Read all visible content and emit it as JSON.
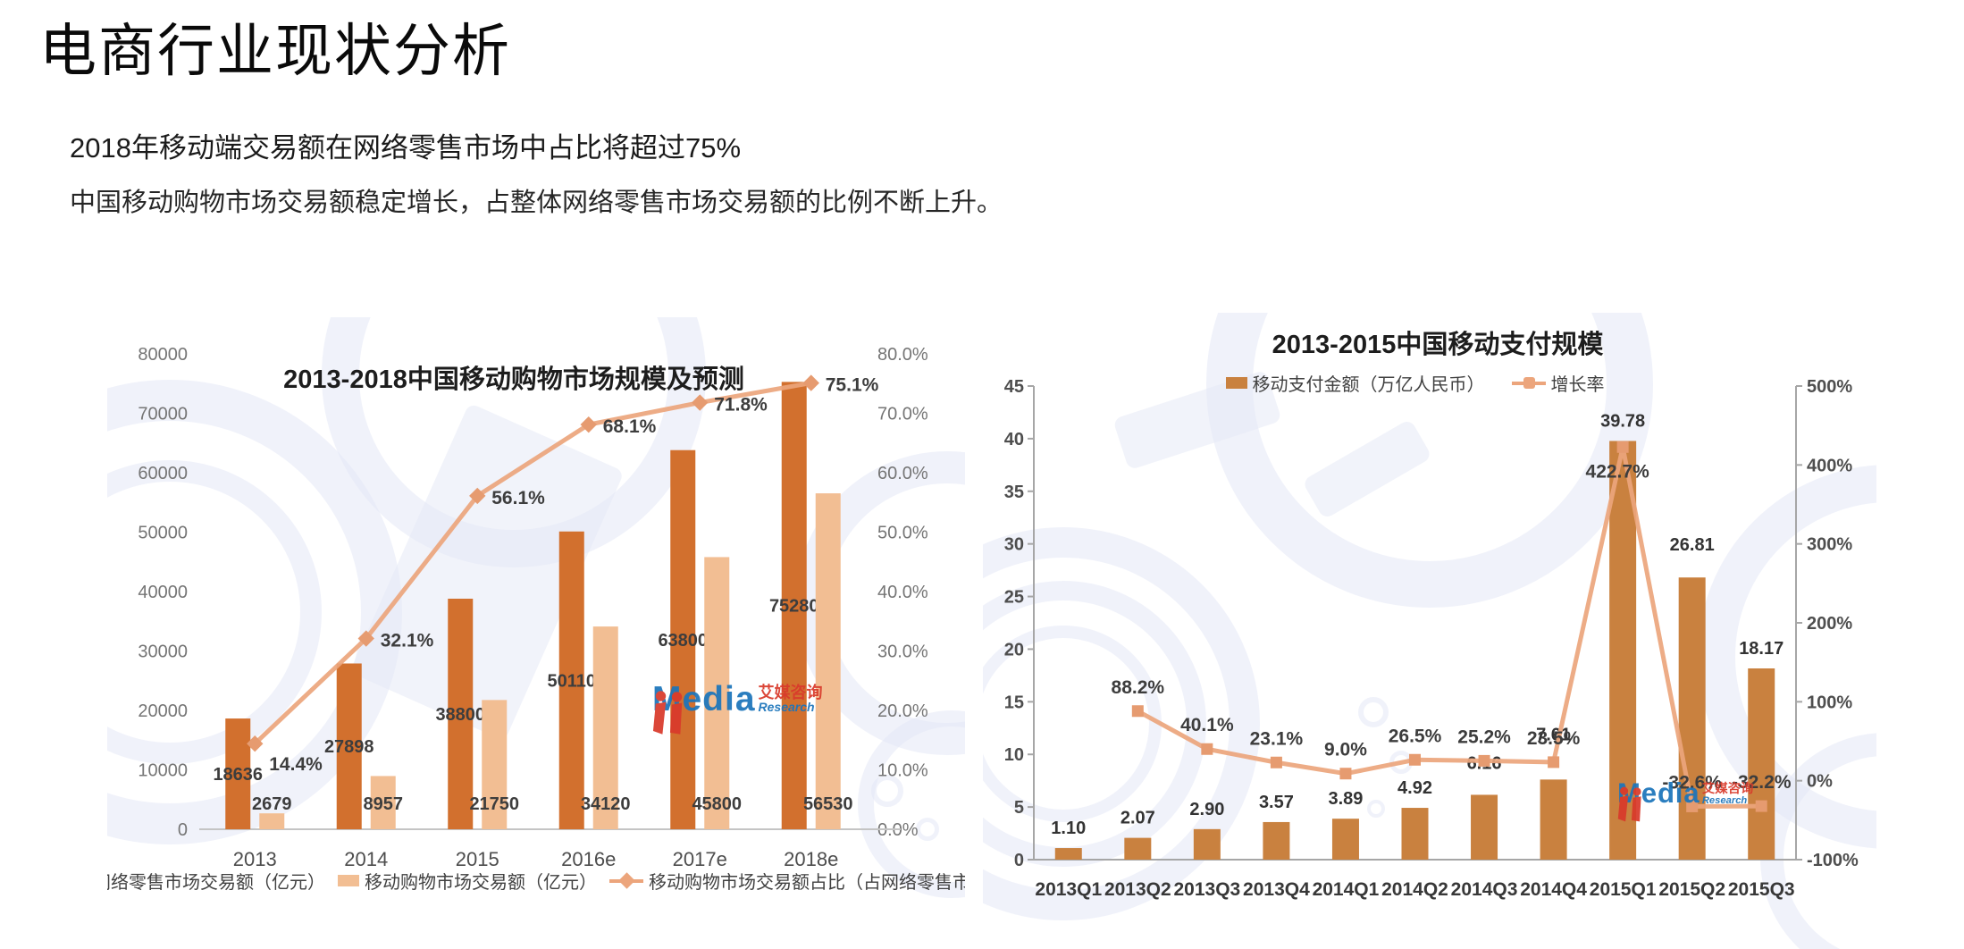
{
  "page": {
    "title": "电商行业现状分析",
    "subtitle": "2018年移动端交易额在网络零售市场中占比将超过75%",
    "description": "中国移动购物市场交易额稳定增长，占整体网络零售市场交易额的比例不断上升。"
  },
  "brand": {
    "media": "Media",
    "cn": "艾媒咨询",
    "research": "Research"
  },
  "colors": {
    "bar_dark": "#D2702E",
    "bar_light": "#F2BE93",
    "bar_right": "#C9813F",
    "line_salmon": "#ECA57C",
    "marker_salmon": "#E69B70",
    "logo_red": "#D93A2B",
    "logo_blue": "#1B75BB",
    "watermark_blue": "#E4E8F6"
  },
  "chart_data": [
    {
      "type": "bar+line",
      "title": "2013-2018中国移动购物市场规模及预测",
      "categories": [
        "2013",
        "2014",
        "2015",
        "2016e",
        "2017e",
        "2018e"
      ],
      "series": [
        {
          "name": "网络零售市场交易额（亿元）",
          "type": "bar",
          "axis": "left",
          "color": "#D2702E",
          "values": [
            18636,
            27898,
            38800,
            50110,
            63800,
            75280
          ],
          "labels": [
            "18636",
            "27898",
            "38800",
            "50110",
            "63800",
            "75280"
          ]
        },
        {
          "name": "移动购物市场交易额（亿元）",
          "type": "bar",
          "axis": "left",
          "color": "#F2BE93",
          "values": [
            2679,
            8957,
            21750,
            34120,
            45800,
            56530
          ],
          "labels": [
            "2679",
            "8957",
            "21750",
            "34120",
            "45800",
            "56530"
          ]
        },
        {
          "name": "移动购物市场交易额占比（占网络零售市场）",
          "type": "line",
          "axis": "right",
          "color": "#ECA57C",
          "values": [
            14.4,
            32.1,
            56.1,
            68.1,
            71.8,
            75.1
          ],
          "labels": [
            "14.4%",
            "32.1%",
            "56.1%",
            "68.1%",
            "71.8%",
            "75.1%"
          ]
        }
      ],
      "left_axis": {
        "min": 0,
        "max": 80000,
        "step": 10000,
        "labels": [
          "0",
          "10000",
          "20000",
          "30000",
          "40000",
          "50000",
          "60000",
          "70000",
          "80000"
        ]
      },
      "right_axis": {
        "min": 0,
        "max": 80,
        "step": 10,
        "labels": [
          "0.0%",
          "10.0%",
          "20.0%",
          "30.0%",
          "40.0%",
          "50.0%",
          "60.0%",
          "70.0%",
          "80.0%"
        ]
      },
      "legend_position": "bottom",
      "grid": false
    },
    {
      "type": "bar+line",
      "title": "2013-2015中国移动支付规模",
      "categories": [
        "2013Q1",
        "2013Q2",
        "2013Q3",
        "2013Q4",
        "2014Q1",
        "2014Q2",
        "2014Q3",
        "2014Q4",
        "2015Q1",
        "2015Q2",
        "2015Q3"
      ],
      "series": [
        {
          "name": "移动支付金额（万亿人民币）",
          "type": "bar",
          "axis": "left",
          "color": "#C9813F",
          "values": [
            1.1,
            2.07,
            2.9,
            3.57,
            3.89,
            4.92,
            6.16,
            7.61,
            39.78,
            26.81,
            18.17
          ],
          "labels": [
            "1.10",
            "2.07",
            "2.90",
            "3.57",
            "3.89",
            "4.92",
            "6.16",
            "7.61",
            "39.78",
            "26.81",
            "18.17"
          ]
        },
        {
          "name": "增长率",
          "type": "line",
          "axis": "right",
          "color": "#ECA57C",
          "values": [
            null,
            88.2,
            40.1,
            23.1,
            9.0,
            26.5,
            25.2,
            23.5,
            422.7,
            -32.6,
            -32.2
          ],
          "labels": [
            "",
            "88.2%",
            "40.1%",
            "23.1%",
            "9.0%",
            "26.5%",
            "25.2%",
            "23.5%",
            "422.7%",
            "-32.6%",
            "-32.2%"
          ]
        }
      ],
      "left_axis": {
        "min": 0,
        "max": 45,
        "step": 5,
        "labels": [
          "0",
          "5",
          "10",
          "15",
          "20",
          "25",
          "30",
          "35",
          "40",
          "45"
        ]
      },
      "right_axis": {
        "min": -100,
        "max": 500,
        "step": 100,
        "labels": [
          "-100%",
          "0%",
          "100%",
          "200%",
          "300%",
          "400%",
          "500%"
        ]
      },
      "legend_position": "top",
      "grid": false
    }
  ]
}
